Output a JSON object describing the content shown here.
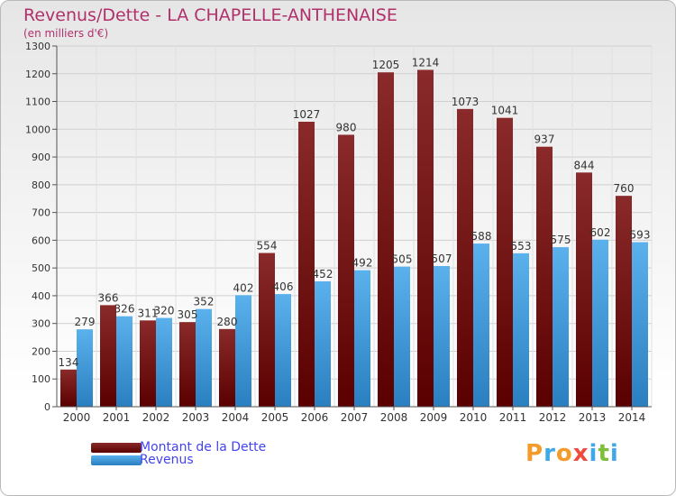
{
  "chart_data": {
    "type": "bar",
    "title": "Revenus/Dette - LA CHAPELLE-ANTHENAISE",
    "subtitle": "(en milliers d'€)",
    "categories": [
      "2000",
      "2001",
      "2002",
      "2003",
      "2004",
      "2005",
      "2006",
      "2007",
      "2008",
      "2009",
      "2010",
      "2011",
      "2012",
      "2013",
      "2014"
    ],
    "series": [
      {
        "name": "Montant de la Dette",
        "values": [
          134,
          366,
          311,
          305,
          280,
          554,
          1027,
          980,
          1205,
          1214,
          1073,
          1041,
          937,
          844,
          760
        ]
      },
      {
        "name": "Revenus",
        "values": [
          279,
          326,
          320,
          352,
          402,
          406,
          452,
          492,
          505,
          507,
          588,
          553,
          575,
          602,
          593
        ]
      }
    ],
    "ylim": [
      0,
      1300
    ],
    "yticks": [
      0,
      100,
      200,
      300,
      400,
      500,
      600,
      700,
      800,
      900,
      1000,
      1100,
      1200,
      1300
    ],
    "grid": true,
    "legend_position": "bottom-left"
  },
  "colors": {
    "dette": "#7a1212",
    "revenus": "#3f9ee0",
    "title": "#b0306c",
    "legend_text": "#4444ee"
  },
  "logo": {
    "text": "Proxiti"
  }
}
